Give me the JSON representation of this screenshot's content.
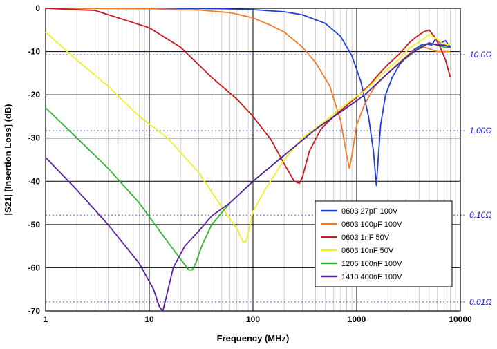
{
  "chart_data": {
    "type": "line",
    "xlabel": "Frequency (MHz)",
    "ylabel": "|S21| [Insertion Loss] (dB)",
    "xscale": "log",
    "xlim": [
      1,
      10000
    ],
    "ylim": [
      -70,
      0
    ],
    "x_ticks": [
      "1",
      "10",
      "100",
      "1000",
      "10000"
    ],
    "y_ticks": [
      "0",
      "-10",
      "-20",
      "-30",
      "-40",
      "-50",
      "-60",
      "-70"
    ],
    "grid": true,
    "legend_position": "bottom-right",
    "reference_lines": [
      {
        "label": "10.0Ω",
        "y": -10.7
      },
      {
        "label": "1.00Ω",
        "y": -28.3
      },
      {
        "label": "0.10Ω",
        "y": -47.8
      },
      {
        "label": "0.01Ω",
        "y": -67.9
      }
    ],
    "series": [
      {
        "name": "0603 27pF 100V",
        "color": "#1f3fd4",
        "x": [
          1,
          10,
          50,
          100,
          200,
          300,
          500,
          700,
          900,
          1100,
          1300,
          1450,
          1550,
          1600,
          1700,
          1900,
          2200,
          2600,
          3100,
          3600,
          4200,
          4800,
          5300,
          5800,
          6400,
          7200,
          8000
        ],
        "y": [
          0,
          0,
          -0.1,
          -0.3,
          -0.8,
          -1.5,
          -3.5,
          -6.5,
          -11,
          -17,
          -25,
          -33,
          -41,
          -36,
          -27,
          -20,
          -16,
          -13,
          -11,
          -9.5,
          -8.5,
          -8.3,
          -8.5,
          -7,
          -8,
          -7.5,
          -9
        ]
      },
      {
        "name": "0603 100pF 100V",
        "color": "#f07a2a",
        "x": [
          1,
          10,
          30,
          60,
          100,
          150,
          200,
          300,
          400,
          550,
          700,
          800,
          850,
          900,
          1000,
          1200,
          1500,
          2000,
          2600,
          3200,
          3800,
          4500,
          5200,
          6000,
          7000,
          8000
        ],
        "y": [
          0,
          -0.1,
          -0.4,
          -1,
          -2.2,
          -4,
          -5.5,
          -9,
          -12.5,
          -18,
          -26,
          -34,
          -37,
          -34,
          -27,
          -22,
          -18,
          -15,
          -12.5,
          -10.5,
          -9.5,
          -9,
          -9.5,
          -10,
          -10,
          -10
        ]
      },
      {
        "name": "0603 1nF 50V",
        "color": "#c8161b",
        "x": [
          1,
          3,
          10,
          20,
          40,
          70,
          100,
          150,
          200,
          250,
          280,
          300,
          350,
          450,
          600,
          800,
          1000,
          1300,
          1600,
          2000,
          2600,
          3200,
          3800,
          4400,
          5000,
          5600,
          6400,
          7200,
          8000
        ],
        "y": [
          0,
          -0.5,
          -4.5,
          -9,
          -16,
          -21,
          -25,
          -30.5,
          -36,
          -40,
          -40.5,
          -39,
          -33,
          -28,
          -25,
          -22.5,
          -20.5,
          -18,
          -15.5,
          -13,
          -10.5,
          -8,
          -6.5,
          -5.5,
          -5,
          -6.5,
          -9,
          -12,
          -16
        ]
      },
      {
        "name": "0603 10nF 50V",
        "color": "#f2ef28",
        "x": [
          1,
          2,
          4,
          8,
          15,
          30,
          50,
          70,
          80,
          85,
          90,
          100,
          130,
          200,
          300,
          500,
          800,
          1200,
          1800,
          2500,
          3300,
          4200,
          5000,
          5800,
          6600,
          7400,
          8000
        ],
        "y": [
          -5.5,
          -12,
          -18,
          -25,
          -30,
          -38,
          -46,
          -51,
          -54,
          -54,
          -52,
          -47,
          -42,
          -35,
          -30,
          -26,
          -22,
          -19,
          -15,
          -12,
          -9,
          -7.5,
          -6,
          -7,
          -8,
          -8.5,
          -8
        ]
      },
      {
        "name": "1206 100nF 100V",
        "color": "#2db52d",
        "x": [
          1,
          2,
          4,
          8,
          15,
          20,
          24,
          26,
          28,
          32,
          40,
          60,
          100,
          200,
          400,
          800,
          1200,
          1800,
          2500,
          3200,
          4000,
          5000,
          6000,
          7000,
          8000
        ],
        "y": [
          -23,
          -30,
          -37,
          -45,
          -54,
          -58,
          -60.5,
          -60.5,
          -59,
          -55,
          -50,
          -45,
          -40,
          -34,
          -28,
          -23,
          -20,
          -16,
          -13,
          -11,
          -9,
          -8,
          -8.5,
          -9,
          -9
        ]
      },
      {
        "name": "1410 400nF 100V",
        "color": "#5a1e9e",
        "x": [
          1,
          2,
          4,
          8,
          11,
          12.5,
          13.5,
          14.5,
          17,
          22,
          30,
          40,
          60,
          100,
          200,
          400,
          800,
          1200,
          1800,
          2500,
          3300,
          4200,
          5000,
          6000,
          7000,
          8000
        ],
        "y": [
          -34.5,
          -42,
          -50,
          -59,
          -65,
          -69,
          -70,
          -67,
          -60,
          -55,
          -51.5,
          -48,
          -45,
          -40,
          -34,
          -28,
          -23,
          -20,
          -16,
          -13,
          -10.5,
          -9,
          -8,
          -8.5,
          -8.5,
          -9
        ]
      }
    ]
  }
}
